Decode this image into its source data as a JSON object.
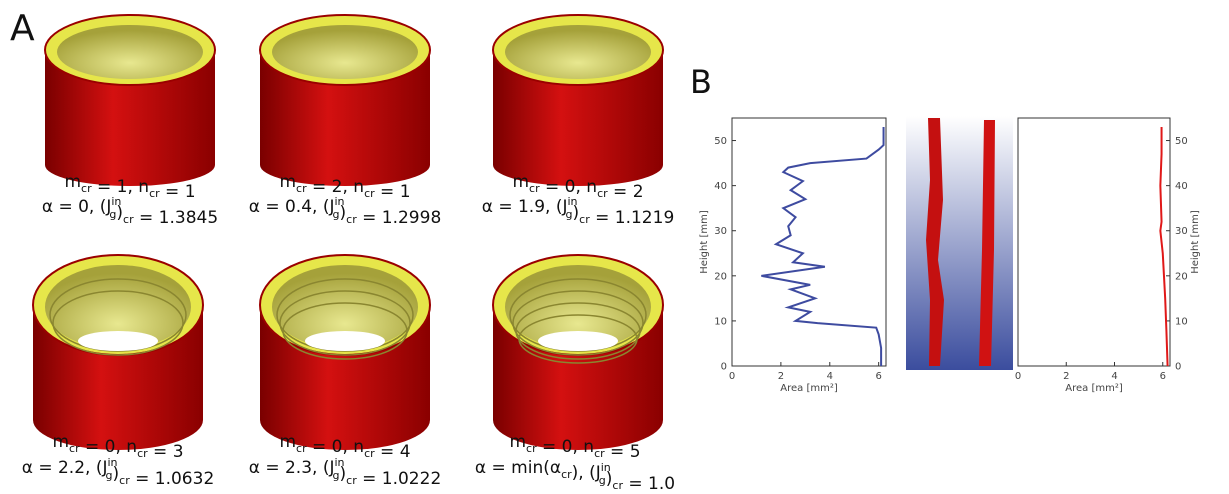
{
  "panel_a": {
    "label": "A",
    "captions": [
      {
        "line1": [
          {
            "t": "m"
          },
          {
            "sub": "cr"
          },
          {
            "t": " = 1, n"
          },
          {
            "sub": "cr"
          },
          {
            "t": " = 1"
          }
        ],
        "line2": [
          {
            "t": "α = 0, (J"
          },
          {
            "sup": "in",
            "sub": "g"
          },
          {
            "t": ")"
          },
          {
            "sub": "cr"
          },
          {
            "t": " = 1.3845"
          }
        ]
      },
      {
        "line1": [
          {
            "t": "m"
          },
          {
            "sub": "cr"
          },
          {
            "t": " = 2, n"
          },
          {
            "sub": "cr"
          },
          {
            "t": " = 1"
          }
        ],
        "line2": [
          {
            "t": "α = 0.4, (J"
          },
          {
            "sup": "in",
            "sub": "g"
          },
          {
            "t": ")"
          },
          {
            "sub": "cr"
          },
          {
            "t": " = 1.2998"
          }
        ]
      },
      {
        "line1": [
          {
            "t": "m"
          },
          {
            "sub": "cr"
          },
          {
            "t": " = 0, n"
          },
          {
            "sub": "cr"
          },
          {
            "t": " = 2"
          }
        ],
        "line2": [
          {
            "t": "α = 1.9, (J"
          },
          {
            "sup": "in",
            "sub": "g"
          },
          {
            "t": ")"
          },
          {
            "sub": "cr"
          },
          {
            "t": " = 1.1219"
          }
        ]
      },
      {
        "line1": [
          {
            "t": "m"
          },
          {
            "sub": "cr"
          },
          {
            "t": " = 0, n"
          },
          {
            "sub": "cr"
          },
          {
            "t": " = 3"
          }
        ],
        "line2": [
          {
            "t": "α = 2.2, (J"
          },
          {
            "sup": "in",
            "sub": "g"
          },
          {
            "t": ")"
          },
          {
            "sub": "cr"
          },
          {
            "t": " = 1.0632"
          }
        ]
      },
      {
        "line1": [
          {
            "t": "m"
          },
          {
            "sub": "cr"
          },
          {
            "t": " = 0, n"
          },
          {
            "sub": "cr"
          },
          {
            "t": " = 4"
          }
        ],
        "line2": [
          {
            "t": "α = 2.3, (J"
          },
          {
            "sup": "in",
            "sub": "g"
          },
          {
            "t": ")"
          },
          {
            "sub": "cr"
          },
          {
            "t": " = 1.0222"
          }
        ]
      },
      {
        "line1": [
          {
            "t": "m"
          },
          {
            "sub": "cr"
          },
          {
            "t": " = 0, n"
          },
          {
            "sub": "cr"
          },
          {
            "t": " = 5"
          }
        ],
        "line2": [
          {
            "t": "α = min(α"
          },
          {
            "sub": "cr"
          },
          {
            "t": "), (J"
          },
          {
            "sup": "in",
            "sub": "g"
          },
          {
            "t": ")"
          },
          {
            "sub": "cr"
          },
          {
            "t": " = 1.0"
          }
        ]
      }
    ]
  },
  "panel_b": {
    "label": "B"
  },
  "chart_data": [
    {
      "type": "line",
      "xlabel": "Area [mm²]",
      "ylabel": "Height [mm]",
      "xlim": [
        0,
        6.3
      ],
      "ylim": [
        0,
        55
      ],
      "xticks": [
        0,
        2,
        4,
        6
      ],
      "yticks": [
        0,
        10,
        20,
        30,
        40,
        50
      ],
      "yaxis_side": "left",
      "series": [
        {
          "color": "#3e4ba0",
          "x": [
            6.1,
            6.1,
            6.0,
            5.9,
            3.5,
            2.6,
            3.2,
            2.3,
            3.4,
            2.4,
            3.2,
            1.2,
            3.8,
            2.5,
            2.9,
            1.8,
            2.4,
            2.3,
            2.6,
            2.1,
            3.0,
            2.4,
            2.9,
            2.1,
            2.3,
            3.2,
            5.5,
            6.0,
            6.2,
            6.2
          ],
          "y": [
            0,
            4,
            7,
            8.5,
            9.5,
            10,
            12,
            13,
            15,
            17,
            18,
            20,
            22,
            23,
            25,
            27,
            29,
            31,
            33,
            35,
            37,
            39,
            41,
            43,
            44,
            45,
            46,
            48,
            49,
            53
          ]
        }
      ]
    },
    {
      "type": "line",
      "xlabel": "Area [mm²]",
      "ylabel": "Height [mm]",
      "xlim": [
        0,
        6.3
      ],
      "ylim": [
        0,
        55
      ],
      "xticks": [
        0,
        2,
        4,
        6
      ],
      "yticks": [
        0,
        10,
        20,
        30,
        40,
        50
      ],
      "yaxis_side": "right",
      "series": [
        {
          "color": "#e01818",
          "x": [
            6.2,
            6.15,
            6.1,
            6.05,
            6.0,
            5.9,
            5.95,
            5.9,
            5.95,
            5.95
          ],
          "y": [
            0,
            8,
            15,
            20,
            25,
            30,
            32,
            40,
            47,
            53
          ]
        }
      ]
    }
  ]
}
